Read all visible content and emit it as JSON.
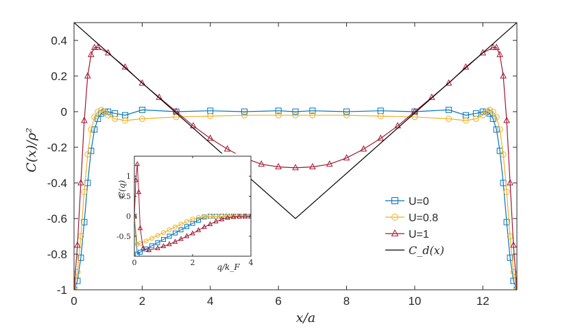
{
  "chart_data": [
    {
      "type": "line",
      "xlabel": "x/a",
      "ylabel": "C(x)/ρ²",
      "xlim": [
        0,
        13
      ],
      "ylim": [
        -1,
        0.5
      ],
      "xticks": [
        0,
        2,
        4,
        6,
        8,
        10,
        12
      ],
      "xtick_labels": [
        "0",
        "2",
        "4",
        "6",
        "8",
        "10",
        "12"
      ],
      "yticks": [
        0.4,
        0.2,
        0,
        -0.2,
        -0.4,
        -0.6,
        -0.8,
        -1
      ],
      "ytick_labels": [
        "0.4",
        "0.2",
        "0",
        "-0.2",
        "-0.4",
        "-0.6",
        "-0.8",
        "-1"
      ],
      "grid": false,
      "legend": "lower-right",
      "series": [
        {
          "name": "U=0",
          "color": "#0072BD",
          "marker": "square",
          "x": [
            0,
            0.1,
            0.2,
            0.3,
            0.4,
            0.5,
            0.6,
            0.7,
            0.8,
            0.9,
            1.0,
            1.2,
            1.5,
            2.0,
            3.0,
            4.0,
            5.0,
            6.0,
            6.5,
            7.0,
            8.0,
            9.0,
            10.0,
            11.0,
            11.5,
            11.8,
            12.0,
            12.1,
            12.2,
            12.3,
            12.4,
            12.5,
            12.6,
            12.7,
            12.8,
            12.9,
            13.0
          ],
          "y": [
            -1.0,
            -0.95,
            -0.82,
            -0.62,
            -0.4,
            -0.22,
            -0.1,
            -0.04,
            -0.01,
            0.0,
            0.0,
            -0.01,
            -0.02,
            0.01,
            0.0,
            0.005,
            0.0,
            0.005,
            0.0,
            0.005,
            0.0,
            0.005,
            0.0,
            0.01,
            -0.02,
            -0.01,
            0.0,
            0.0,
            -0.01,
            -0.04,
            -0.1,
            -0.22,
            -0.4,
            -0.62,
            -0.82,
            -0.95,
            -1.0
          ]
        },
        {
          "name": "U=0.8",
          "color": "#EDB120",
          "marker": "circle",
          "x": [
            0,
            0.1,
            0.2,
            0.3,
            0.4,
            0.5,
            0.6,
            0.7,
            0.8,
            0.9,
            1.0,
            1.2,
            1.5,
            2.0,
            3.0,
            4.0,
            5.0,
            6.0,
            6.5,
            7.0,
            8.0,
            9.0,
            10.0,
            11.0,
            11.5,
            11.8,
            12.0,
            12.1,
            12.2,
            12.3,
            12.4,
            12.5,
            12.6,
            12.7,
            12.8,
            12.9,
            13.0
          ],
          "y": [
            -1.0,
            -0.9,
            -0.7,
            -0.45,
            -0.24,
            -0.1,
            -0.03,
            0.0,
            0.01,
            0.0,
            -0.02,
            -0.04,
            -0.05,
            -0.04,
            -0.03,
            -0.025,
            -0.02,
            -0.02,
            -0.02,
            -0.02,
            -0.02,
            -0.025,
            -0.03,
            -0.04,
            -0.05,
            -0.04,
            -0.02,
            0.0,
            0.01,
            0.0,
            -0.03,
            -0.1,
            -0.24,
            -0.45,
            -0.7,
            -0.9,
            -1.0
          ]
        },
        {
          "name": "U=1",
          "color": "#A2142F",
          "marker": "triangle",
          "x": [
            0,
            0.1,
            0.2,
            0.3,
            0.4,
            0.5,
            0.6,
            0.7,
            1.0,
            1.5,
            2.0,
            2.5,
            3.0,
            3.5,
            4.0,
            4.5,
            5.0,
            5.5,
            6.0,
            6.5,
            7.0,
            7.5,
            8.0,
            8.5,
            9.0,
            9.5,
            10.0,
            10.5,
            11.0,
            11.5,
            12.0,
            12.3,
            12.4,
            12.5,
            12.6,
            12.7,
            12.8,
            12.9,
            13.0
          ],
          "y": [
            -1.0,
            -0.75,
            -0.4,
            -0.05,
            0.2,
            0.32,
            0.36,
            0.36,
            0.33,
            0.25,
            0.16,
            0.08,
            0.0,
            -0.08,
            -0.15,
            -0.21,
            -0.26,
            -0.295,
            -0.31,
            -0.315,
            -0.31,
            -0.295,
            -0.26,
            -0.21,
            -0.15,
            -0.08,
            0.0,
            0.08,
            0.16,
            0.25,
            0.33,
            0.36,
            0.36,
            0.32,
            0.2,
            -0.05,
            -0.4,
            -0.75,
            -1.0
          ]
        },
        {
          "name": "C_d(x)",
          "color": "#000000",
          "marker": "none",
          "x": [
            0,
            6.5,
            13
          ],
          "y": [
            0.5,
            -0.6,
            0.5
          ]
        }
      ]
    },
    {
      "type": "line",
      "inset": true,
      "xlabel": "q/k_F",
      "ylabel": "C(q)",
      "xlim": [
        0,
        4
      ],
      "ylim": [
        -1,
        1.5
      ],
      "xticks": [
        0,
        2,
        4
      ],
      "xtick_labels": [
        "0",
        "2",
        "4"
      ],
      "yticks": [
        1,
        0.5,
        0,
        -0.5
      ],
      "ytick_labels": [
        "1",
        "0.5",
        "0",
        "-0.5"
      ],
      "series": [
        {
          "name": "U=0",
          "color": "#0072BD",
          "marker": "square",
          "x": [
            0,
            0.1,
            0.2,
            0.4,
            0.6,
            0.8,
            1.0,
            1.2,
            1.4,
            1.6,
            1.8,
            2.0,
            2.2,
            2.4,
            2.6,
            2.8,
            3.0,
            3.2,
            3.4,
            3.6,
            3.8,
            4.0
          ],
          "y": [
            0.0,
            -0.95,
            -0.9,
            -0.82,
            -0.74,
            -0.66,
            -0.58,
            -0.5,
            -0.42,
            -0.34,
            -0.26,
            -0.18,
            -0.1,
            -0.02,
            0.0,
            0.0,
            0.0,
            0.0,
            0.0,
            0.0,
            0.0,
            0.0
          ]
        },
        {
          "name": "U=0.8",
          "color": "#EDB120",
          "marker": "circle",
          "x": [
            0,
            0.1,
            0.2,
            0.4,
            0.6,
            0.8,
            1.0,
            1.2,
            1.4,
            1.6,
            1.8,
            2.0,
            2.2,
            2.4,
            2.6,
            2.8,
            3.0,
            3.2,
            3.4,
            3.6,
            3.8,
            4.0
          ],
          "y": [
            0.0,
            -0.7,
            -0.68,
            -0.62,
            -0.55,
            -0.48,
            -0.41,
            -0.34,
            -0.27,
            -0.2,
            -0.13,
            -0.07,
            -0.03,
            -0.01,
            0.0,
            0.0,
            0.0,
            0.0,
            0.0,
            0.0,
            0.0,
            0.0
          ]
        },
        {
          "name": "U=1",
          "color": "#A2142F",
          "marker": "triangle",
          "x": [
            0,
            0.05,
            0.1,
            0.15,
            0.2,
            0.3,
            0.5,
            0.8,
            1.0,
            1.2,
            1.4,
            1.6,
            1.8,
            2.0,
            2.2,
            2.4,
            2.6,
            2.8,
            3.0,
            3.2,
            3.4,
            3.6,
            3.8,
            4.0
          ],
          "y": [
            0.0,
            0.9,
            1.3,
            0.6,
            -0.3,
            -0.8,
            -0.85,
            -0.8,
            -0.75,
            -0.7,
            -0.64,
            -0.57,
            -0.5,
            -0.43,
            -0.35,
            -0.27,
            -0.2,
            -0.13,
            -0.08,
            -0.04,
            -0.02,
            -0.01,
            0.0,
            0.0
          ]
        }
      ]
    }
  ]
}
